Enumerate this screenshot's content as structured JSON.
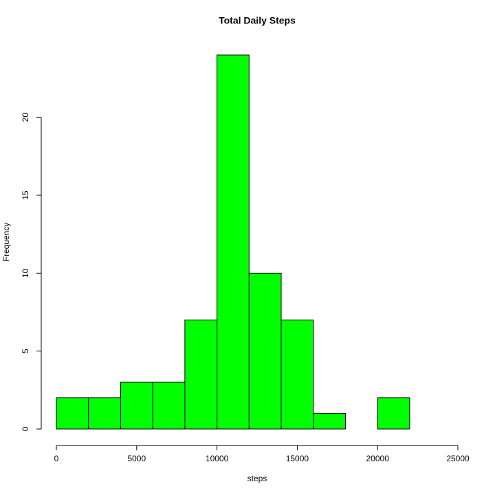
{
  "chart_data": {
    "type": "histogram",
    "title": "Total Daily Steps",
    "x_label": "steps",
    "y_label": "Frequency",
    "bins": [
      0,
      2000,
      4000,
      6000,
      8000,
      10000,
      12000,
      14000,
      16000,
      18000,
      20000,
      22000
    ],
    "values": [
      2,
      2,
      3,
      3,
      7,
      24,
      10,
      7,
      1,
      0,
      2
    ],
    "color": "#00ff00",
    "xlim": [
      0,
      25000
    ],
    "xticks": [
      0,
      5000,
      10000,
      15000,
      20000,
      25000
    ],
    "ylim": [
      0,
      24
    ],
    "yticks": [
      0,
      5,
      10,
      15,
      20
    ]
  }
}
